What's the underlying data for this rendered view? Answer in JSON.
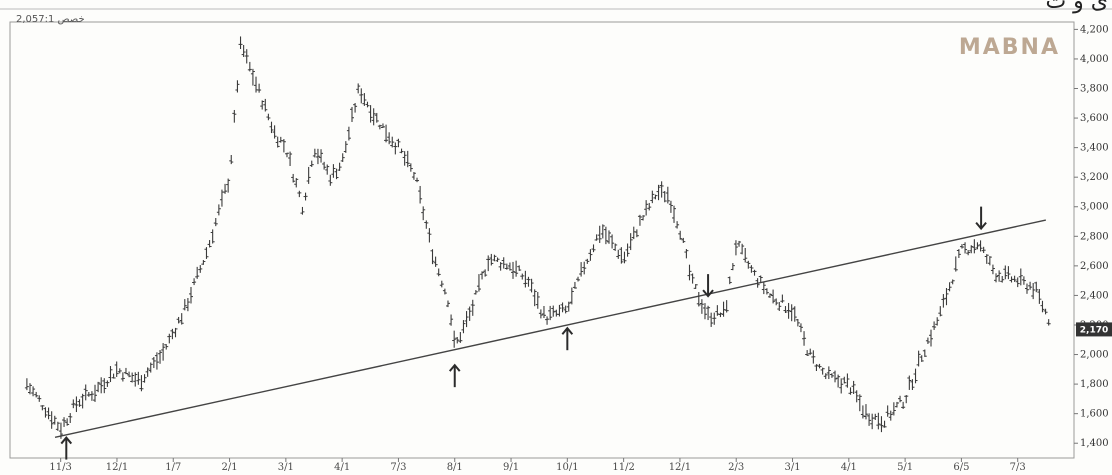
{
  "header": {
    "watermark": "MABNA",
    "readout": "2,057:1 خصص",
    "top_title": "ی و ت",
    "last_value_label": "2,170"
  },
  "colors": {
    "background": "#fdfdfb",
    "price": "#3a3a3a",
    "trendline": "#444444",
    "arrow": "#2b2b2b",
    "watermark": "#bda893",
    "badge": "#333333"
  },
  "chart_data": {
    "type": "ohlc",
    "title": "",
    "xlabel": "",
    "ylabel": "",
    "ylim": [
      1300,
      4250
    ],
    "x_ticks": [
      "11/3",
      "12/1",
      "1/7",
      "2/1",
      "3/1",
      "4/1",
      "7/3",
      "8/1",
      "9/1",
      "10/1",
      "11/2",
      "12/1",
      "2/3",
      "3/1",
      "4/1",
      "5/1",
      "6/5",
      "7/3"
    ],
    "y_ticks": [
      1400,
      1600,
      1800,
      2000,
      2200,
      2400,
      2600,
      2800,
      3000,
      3200,
      3400,
      3600,
      3800,
      4000,
      4200
    ],
    "y_tick_labels": [
      "1,400",
      "1,600",
      "1,800",
      "2,000",
      "2,200",
      "2,400",
      "2,600",
      "2,800",
      "3,000",
      "3,200",
      "3,400",
      "3,600",
      "3,800",
      "4,000",
      "4,200"
    ],
    "grid": false,
    "series": [
      {
        "x": [
          -0.6,
          -0.3,
          0.0,
          0.3,
          0.6,
          1.0,
          1.4,
          1.8,
          2.2,
          2.6,
          3.0,
          3.2,
          3.6,
          3.8,
          4.0,
          4.3,
          4.5,
          4.8,
          5.0,
          5.3,
          5.6,
          6.0,
          6.3,
          6.6,
          6.9,
          7.0,
          7.3,
          7.6,
          8.0,
          8.3,
          8.6,
          9.0,
          9.3,
          9.6,
          10.0,
          10.3,
          10.6,
          10.8,
          11.0,
          11.2,
          11.5,
          11.8,
          12.0,
          12.3,
          12.6,
          13.0,
          13.3,
          13.6,
          14.0,
          14.3,
          14.6,
          15.0,
          15.3,
          15.6,
          16.0,
          16.3,
          16.6,
          17.0,
          17.3,
          17.6
        ],
        "values": [
          1800,
          1650,
          1500,
          1680,
          1750,
          1900,
          1820,
          2000,
          2300,
          2700,
          3200,
          4100,
          3700,
          3500,
          3400,
          3000,
          3400,
          3200,
          3300,
          3800,
          3600,
          3400,
          3200,
          2700,
          2350,
          2050,
          2300,
          2650,
          2600,
          2500,
          2250,
          2300,
          2600,
          2850,
          2650,
          2900,
          3100,
          3080,
          2850,
          2500,
          2260,
          2280,
          2750,
          2550,
          2400,
          2300,
          2000,
          1850,
          1800,
          1600,
          1550,
          1700,
          2000,
          2250,
          2700,
          2750,
          2550,
          2500,
          2450,
          2200
        ]
      }
    ],
    "trendline": {
      "x": [
        -0.1,
        17.5
      ],
      "values": [
        1440,
        2910
      ]
    },
    "markers": [
      {
        "x": 0.1,
        "direction": "up"
      },
      {
        "x": 7.0,
        "direction": "up"
      },
      {
        "x": 9.0,
        "direction": "up"
      },
      {
        "x": 11.5,
        "direction": "down"
      },
      {
        "x": 16.35,
        "direction": "down"
      }
    ]
  }
}
